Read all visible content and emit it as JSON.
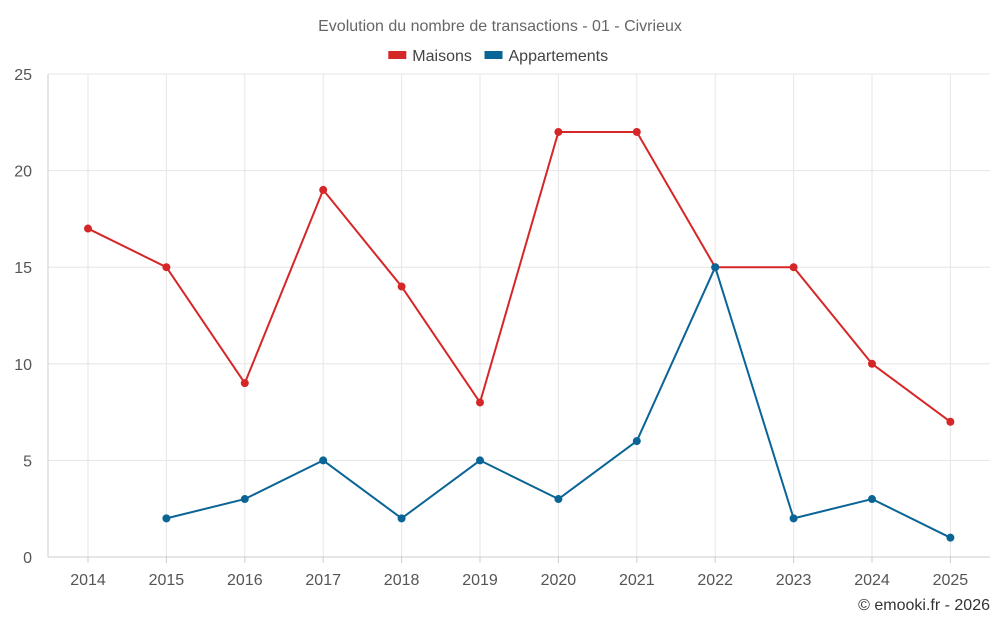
{
  "chart_data": {
    "type": "line",
    "title": "Evolution du nombre de transactions - 01 - Civrieux",
    "x": [
      "2014",
      "2015",
      "2016",
      "2017",
      "2018",
      "2019",
      "2020",
      "2021",
      "2022",
      "2023",
      "2024",
      "2025"
    ],
    "series": [
      {
        "name": "Maisons",
        "color": "#d62728",
        "values": [
          17,
          15,
          9,
          19,
          14,
          8,
          22,
          22,
          15,
          15,
          10,
          7
        ]
      },
      {
        "name": "Appartements",
        "color": "#0a6496",
        "values": [
          null,
          2,
          3,
          5,
          2,
          5,
          3,
          6,
          15,
          2,
          3,
          1
        ]
      }
    ],
    "ylim": [
      0,
      25
    ],
    "yticks": [
      0,
      5,
      10,
      15,
      20,
      25
    ],
    "grid": true,
    "legend": "top-center"
  },
  "credit": "© emooki.fr - 2026"
}
